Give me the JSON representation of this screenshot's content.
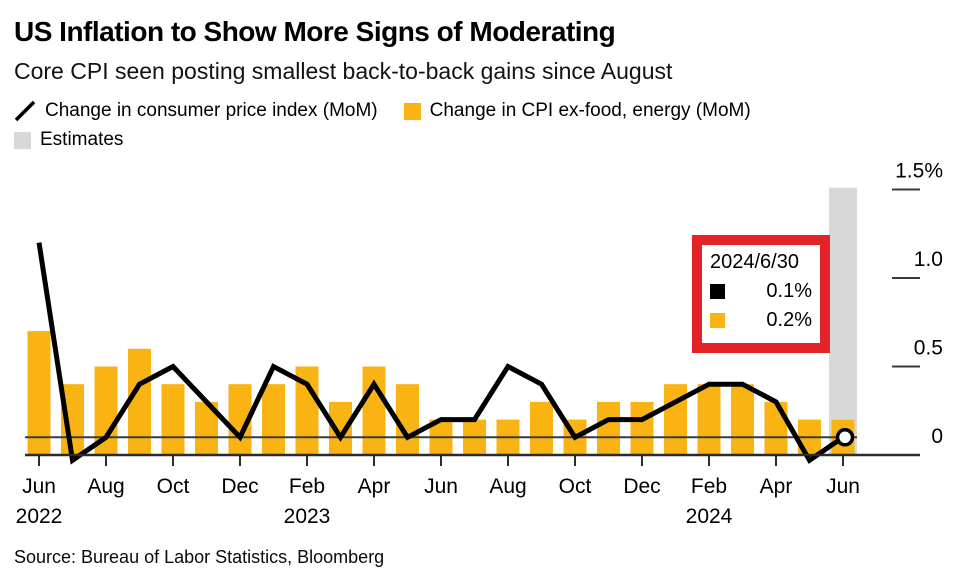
{
  "title": "US Inflation to Show More Signs of Moderating",
  "subtitle": "Core CPI seen posting smallest back-to-back gains since August",
  "legend": {
    "items": [
      {
        "id": "cpi-line",
        "swatch": "diagonal-line",
        "color": "#000000",
        "label": "Change in consumer price index (MoM)"
      },
      {
        "id": "core-cpi-bars",
        "swatch": "square",
        "color": "#f9b414",
        "label": "Change in CPI ex-food, energy (MoM)"
      },
      {
        "id": "estimates",
        "swatch": "square",
        "color": "#d8d8d8",
        "label": "Estimates"
      }
    ]
  },
  "tooltip": {
    "date": "2024/6/30",
    "rows": [
      {
        "series": "Change in consumer price index (MoM)",
        "swatch_color": "#000000",
        "value": "0.1%"
      },
      {
        "series": "Change in CPI ex-food, energy (MoM)",
        "swatch_color": "#f9b414",
        "value": "0.2%"
      }
    ],
    "border_color": "#e42326"
  },
  "source": "Source: Bureau of Labor Statistics, Bloomberg",
  "colors": {
    "bar": "#f9b414",
    "line": "#000000",
    "estimate_band": "#d8d8d8",
    "tooltip_border": "#e42326",
    "axis": "#2b2b2b",
    "background": "#ffffff"
  },
  "chart_data": {
    "type": "bar+line",
    "x": [
      "Jun 2022",
      "Jul 2022",
      "Aug 2022",
      "Sep 2022",
      "Oct 2022",
      "Nov 2022",
      "Dec 2022",
      "Jan 2023",
      "Feb 2023",
      "Mar 2023",
      "Apr 2023",
      "May 2023",
      "Jun 2023",
      "Jul 2023",
      "Aug 2023",
      "Sep 2023",
      "Oct 2023",
      "Nov 2023",
      "Dec 2023",
      "Jan 2024",
      "Feb 2024",
      "Mar 2024",
      "Apr 2024",
      "May 2024",
      "Jun 2024"
    ],
    "series": [
      {
        "name": "Change in consumer price index (MoM)",
        "type": "line",
        "color": "#000000",
        "values": [
          1.2,
          -0.03,
          0.1,
          0.4,
          0.5,
          0.3,
          0.1,
          0.5,
          0.4,
          0.1,
          0.4,
          0.1,
          0.2,
          0.2,
          0.5,
          0.4,
          0.1,
          0.2,
          0.2,
          0.3,
          0.4,
          0.4,
          0.3,
          -0.03,
          0.1
        ]
      },
      {
        "name": "Change in CPI ex-food, energy (MoM)",
        "type": "bar",
        "color": "#f9b414",
        "values": [
          0.7,
          0.4,
          0.5,
          0.6,
          0.4,
          0.3,
          0.4,
          0.4,
          0.5,
          0.3,
          0.5,
          0.4,
          0.2,
          0.2,
          0.2,
          0.3,
          0.2,
          0.3,
          0.3,
          0.4,
          0.4,
          0.4,
          0.3,
          0.2,
          0.2
        ]
      }
    ],
    "estimate_month": "Jun 2024",
    "estimate_index": 24,
    "last_value_line": 0.1,
    "end_marker": {
      "x": "Jun 2024",
      "value": 0.1
    },
    "y_axis": {
      "side": "right",
      "range": [
        -0.1,
        1.55
      ],
      "ticks": [
        0,
        0.5,
        1.0,
        1.5
      ],
      "tick_labels": [
        "0",
        "0.5",
        "1.0",
        "1.5%"
      ]
    },
    "x_axis": {
      "tick_indices": [
        0,
        2,
        4,
        6,
        8,
        10,
        12,
        14,
        16,
        18,
        20,
        22,
        24
      ],
      "tick_labels": [
        "Jun",
        "Aug",
        "Oct",
        "Dec",
        "Feb",
        "Apr",
        "Jun",
        "Aug",
        "Oct",
        "Dec",
        "Feb",
        "Apr",
        "Jun"
      ],
      "year_labels": [
        {
          "text": "2022",
          "index": 0
        },
        {
          "text": "2023",
          "index": 8
        },
        {
          "text": "2024",
          "index": 20
        }
      ]
    },
    "grid": false,
    "legend_position": "top-left"
  }
}
